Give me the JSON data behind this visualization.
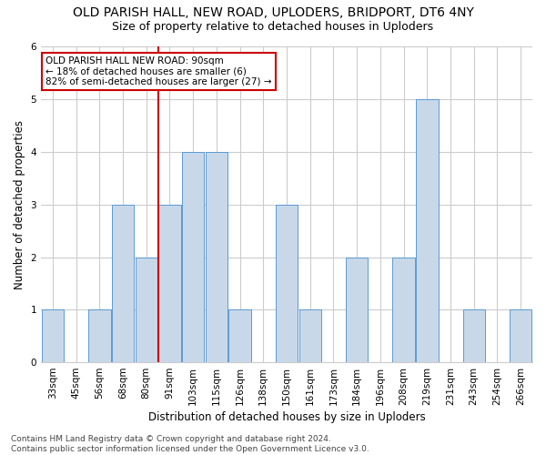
{
  "title": "OLD PARISH HALL, NEW ROAD, UPLODERS, BRIDPORT, DT6 4NY",
  "subtitle": "Size of property relative to detached houses in Uploders",
  "xlabel": "Distribution of detached houses by size in Uploders",
  "ylabel": "Number of detached properties",
  "categories": [
    "33sqm",
    "45sqm",
    "56sqm",
    "68sqm",
    "80sqm",
    "91sqm",
    "103sqm",
    "115sqm",
    "126sqm",
    "138sqm",
    "150sqm",
    "161sqm",
    "173sqm",
    "184sqm",
    "196sqm",
    "208sqm",
    "219sqm",
    "231sqm",
    "243sqm",
    "254sqm",
    "266sqm"
  ],
  "values": [
    1,
    0,
    1,
    3,
    2,
    3,
    4,
    4,
    1,
    0,
    3,
    1,
    0,
    2,
    0,
    2,
    5,
    0,
    1,
    0,
    1
  ],
  "bar_color": "#C8D8E8",
  "bar_edge_color": "#5B9BD5",
  "annotation_text": "OLD PARISH HALL NEW ROAD: 90sqm\n← 18% of detached houses are smaller (6)\n82% of semi-detached houses are larger (27) →",
  "annotation_box_color": "#FFFFFF",
  "annotation_box_edge": "#CC0000",
  "highlight_line_color": "#CC0000",
  "ylim": [
    0,
    6
  ],
  "yticks": [
    0,
    1,
    2,
    3,
    4,
    5,
    6
  ],
  "grid_color": "#CCCCCC",
  "background_color": "#FFFFFF",
  "footer_text": "Contains HM Land Registry data © Crown copyright and database right 2024.\nContains public sector information licensed under the Open Government Licence v3.0.",
  "title_fontsize": 10,
  "subtitle_fontsize": 9,
  "ylabel_fontsize": 8.5,
  "xlabel_fontsize": 8.5,
  "tick_fontsize": 7.5,
  "annotation_fontsize": 7.5,
  "footer_fontsize": 6.5
}
